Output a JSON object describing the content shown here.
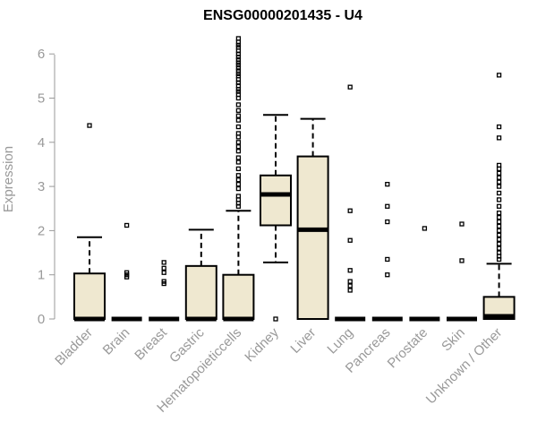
{
  "chart_data": {
    "type": "boxplot",
    "title": "ENSG00000201435 - U4",
    "xlabel": "",
    "ylabel": "Expression",
    "ylim": [
      0,
      6.3
    ],
    "yticks": [
      0,
      1,
      2,
      3,
      4,
      5,
      6
    ],
    "grid": false,
    "legend": "none",
    "box_fill": "#efe8d0",
    "box_stroke": "#000000",
    "axis_color": "#999999",
    "categories": [
      "Bladder",
      "Brain",
      "Breast",
      "Gastric",
      "Hematopoieticcells",
      "Kidney",
      "Liver",
      "Lung",
      "Pancreas",
      "Prostate",
      "Skin",
      "Unknown / Other"
    ],
    "boxes": [
      {
        "q1": 0,
        "median": 0,
        "q3": 1.03,
        "whisker_low": 0,
        "whisker_high": 1.85,
        "outliers": [
          4.38
        ]
      },
      {
        "q1": 0,
        "median": 0,
        "q3": 0,
        "whisker_low": 0,
        "whisker_high": 0,
        "outliers": [
          0.95,
          1.0,
          1.05,
          2.12
        ]
      },
      {
        "q1": 0,
        "median": 0,
        "q3": 0,
        "whisker_low": 0,
        "whisker_high": 0,
        "outliers": [
          0.8,
          0.85,
          1.05,
          1.15,
          1.28
        ]
      },
      {
        "q1": 0,
        "median": 0,
        "q3": 1.2,
        "whisker_low": 0,
        "whisker_high": 2.02,
        "outliers": []
      },
      {
        "q1": 0,
        "median": 0,
        "q3": 1.0,
        "whisker_low": 0,
        "whisker_high": 2.45,
        "outliers": [
          2.55,
          2.62,
          2.7,
          2.78,
          2.95,
          3.05,
          3.15,
          3.25,
          3.4,
          3.55,
          3.65,
          3.8,
          3.9,
          4.0,
          4.12,
          4.2,
          4.35,
          4.5,
          4.6,
          4.72,
          4.85,
          5.0,
          5.08,
          5.15,
          5.2,
          5.28,
          5.35,
          5.42,
          5.5,
          5.55,
          5.62,
          5.68,
          5.75,
          5.8,
          5.87,
          5.93,
          6.0,
          6.07,
          6.15,
          6.2,
          6.27,
          6.35
        ]
      },
      {
        "q1": 2.12,
        "median": 2.82,
        "q3": 3.25,
        "whisker_low": 1.28,
        "whisker_high": 4.62,
        "outliers": [
          0
        ]
      },
      {
        "q1": 0,
        "median": 2.02,
        "q3": 3.68,
        "whisker_low": 0,
        "whisker_high": 4.53,
        "outliers": []
      },
      {
        "q1": 0,
        "median": 0,
        "q3": 0,
        "whisker_low": 0,
        "whisker_high": 0,
        "outliers": [
          0.65,
          0.75,
          0.85,
          1.1,
          1.78,
          2.45,
          5.25
        ]
      },
      {
        "q1": 0,
        "median": 0,
        "q3": 0,
        "whisker_low": 0,
        "whisker_high": 0,
        "outliers": [
          1.0,
          1.35,
          2.2,
          2.55,
          3.05
        ]
      },
      {
        "q1": 0,
        "median": 0,
        "q3": 0,
        "whisker_low": 0,
        "whisker_high": 0,
        "outliers": [
          2.05
        ]
      },
      {
        "q1": 0,
        "median": 0,
        "q3": 0,
        "whisker_low": 0,
        "whisker_high": 0,
        "outliers": [
          1.32,
          2.15
        ]
      },
      {
        "q1": 0,
        "median": 0.06,
        "q3": 0.5,
        "whisker_low": 0,
        "whisker_high": 1.25,
        "outliers": [
          1.35,
          1.42,
          1.5,
          1.6,
          1.7,
          1.8,
          1.9,
          2.0,
          2.1,
          2.2,
          2.3,
          2.4,
          2.55,
          2.7,
          2.85,
          3.0,
          3.1,
          3.2,
          3.3,
          3.4,
          3.48,
          4.1,
          4.35,
          5.52
        ]
      }
    ]
  }
}
